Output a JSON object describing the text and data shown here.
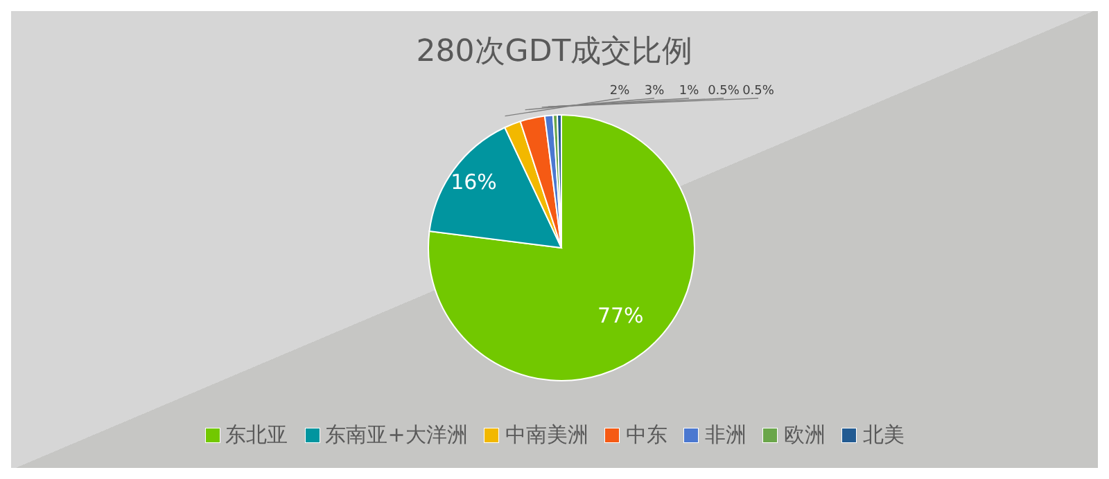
{
  "chart_data": {
    "type": "pie",
    "title": "280次GDT成交比例",
    "categories": [
      "东北亚",
      "东南亚+大洋洲",
      "中南美洲",
      "中东",
      "非洲",
      "欧洲",
      "北美"
    ],
    "values": [
      77,
      16,
      2,
      3,
      1,
      0.5,
      0.5
    ],
    "colors": [
      "#72c800",
      "#01959f",
      "#f2b800",
      "#f55a14",
      "#4b78d0",
      "#6aa64a",
      "#235b92"
    ],
    "value_labels": [
      "77%",
      "16%",
      "2%",
      "3%",
      "1%",
      "0.5%",
      "0.5%"
    ],
    "legend": "bottom"
  }
}
